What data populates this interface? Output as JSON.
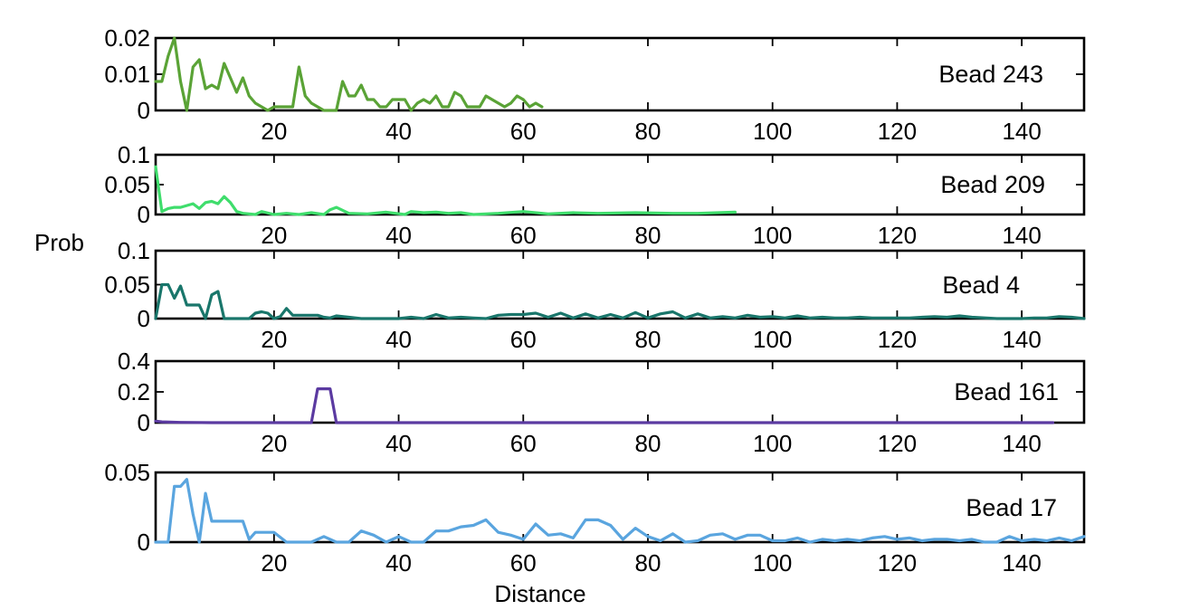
{
  "figure": {
    "ylabel": "Prob",
    "xlabel": "Distance"
  },
  "chart_data": [
    {
      "type": "line",
      "annotation": "Bead 243",
      "xlim": [
        1,
        150
      ],
      "ylim": [
        0,
        0.02
      ],
      "xticks": [
        20,
        40,
        60,
        80,
        100,
        120,
        140
      ],
      "xtick_labels": [
        "20",
        "40",
        "60",
        "80",
        "100",
        "120",
        "140"
      ],
      "yticks": [
        0,
        0.01,
        0.02
      ],
      "ytick_labels": [
        "0",
        "0.01",
        "0.02"
      ],
      "color": "#5aa336",
      "x": [
        1,
        2,
        3,
        4,
        5,
        6,
        7,
        8,
        9,
        10,
        11,
        12,
        13,
        14,
        15,
        16,
        17,
        18,
        19,
        20,
        21,
        22,
        23,
        24,
        25,
        26,
        27,
        28,
        29,
        30,
        31,
        32,
        33,
        34,
        35,
        36,
        37,
        38,
        39,
        40,
        41,
        42,
        43,
        44,
        45,
        46,
        47,
        48,
        49,
        50,
        51,
        52,
        53,
        54,
        55,
        56,
        57,
        58,
        59,
        60,
        61,
        62,
        63
      ],
      "values": [
        0.008,
        0.008,
        0.015,
        0.02,
        0.008,
        0,
        0.012,
        0.014,
        0.006,
        0.007,
        0.006,
        0.013,
        0.009,
        0.005,
        0.009,
        0.004,
        0.002,
        0.001,
        0,
        0.001,
        0.001,
        0.001,
        0.001,
        0.012,
        0.004,
        0.002,
        0.001,
        0,
        0,
        0,
        0.008,
        0.004,
        0.004,
        0.007,
        0.003,
        0.003,
        0.001,
        0.001,
        0.003,
        0.003,
        0.003,
        0,
        0.002,
        0.003,
        0.002,
        0.004,
        0.001,
        0.001,
        0.005,
        0.004,
        0.001,
        0.001,
        0.001,
        0.004,
        0.003,
        0.002,
        0.001,
        0.002,
        0.004,
        0.003,
        0.001,
        0.002,
        0.001
      ]
    },
    {
      "type": "line",
      "annotation": "Bead 209",
      "xlim": [
        1,
        150
      ],
      "ylim": [
        0,
        0.1
      ],
      "xticks": [
        20,
        40,
        60,
        80,
        100,
        120,
        140
      ],
      "xtick_labels": [
        "20",
        "40",
        "60",
        "80",
        "100",
        "120",
        "140"
      ],
      "yticks": [
        0,
        0.05,
        0.1
      ],
      "ytick_labels": [
        "0",
        "0.05",
        "0.1"
      ],
      "color": "#3fdd6c",
      "x": [
        1,
        2,
        3,
        4,
        5,
        6,
        7,
        8,
        9,
        10,
        11,
        12,
        13,
        14,
        15,
        17,
        18,
        20,
        22,
        24,
        26,
        28,
        29,
        30,
        32,
        35,
        38,
        41,
        42,
        44,
        46,
        48,
        50,
        52,
        56,
        60,
        64,
        68,
        72,
        78,
        84,
        88,
        94
      ],
      "values": [
        0.08,
        0.005,
        0.01,
        0.012,
        0.012,
        0.015,
        0.018,
        0.01,
        0.02,
        0.022,
        0.018,
        0.03,
        0.02,
        0.005,
        0.002,
        0,
        0.005,
        0,
        0.002,
        0,
        0.003,
        0,
        0.008,
        0.012,
        0.002,
        0.001,
        0.004,
        0,
        0.005,
        0.003,
        0.004,
        0.002,
        0.003,
        0,
        0.002,
        0.005,
        0.001,
        0.003,
        0.002,
        0.003,
        0.002,
        0.002,
        0.004
      ]
    },
    {
      "type": "line",
      "annotation": "Bead 4",
      "xlim": [
        1,
        150
      ],
      "ylim": [
        0,
        0.1
      ],
      "xticks": [
        20,
        40,
        60,
        80,
        100,
        120,
        140
      ],
      "xtick_labels": [
        "20",
        "40",
        "60",
        "80",
        "100",
        "120",
        "140"
      ],
      "yticks": [
        0,
        0.05,
        0.1
      ],
      "ytick_labels": [
        "0",
        "0.05",
        "0.1"
      ],
      "color": "#19766b",
      "x": [
        1,
        2,
        3,
        4,
        5,
        6,
        7,
        8,
        9,
        10,
        11,
        12,
        13,
        14,
        15,
        16,
        17,
        18,
        19,
        20,
        21,
        22,
        23,
        24,
        25,
        26,
        27,
        28,
        29,
        30,
        32,
        34,
        36,
        38,
        40,
        42,
        44,
        46,
        48,
        50,
        52,
        54,
        56,
        58,
        60,
        62,
        64,
        66,
        68,
        70,
        72,
        74,
        76,
        78,
        80,
        82,
        84,
        86,
        88,
        90,
        92,
        94,
        96,
        98,
        100,
        102,
        104,
        106,
        108,
        110,
        112,
        114,
        116,
        118,
        120,
        122,
        124,
        126,
        128,
        130,
        132,
        136,
        140,
        142,
        144,
        146,
        148,
        150
      ],
      "values": [
        0,
        0.05,
        0.05,
        0.03,
        0.048,
        0.02,
        0.02,
        0.02,
        0,
        0.035,
        0.04,
        0,
        0,
        0,
        0,
        0,
        0.008,
        0.01,
        0.008,
        0,
        0.003,
        0.015,
        0.005,
        0.005,
        0.005,
        0.005,
        0.005,
        0.002,
        0.001,
        0.004,
        0.002,
        0,
        0,
        0,
        0,
        0.002,
        0,
        0.006,
        0.001,
        0.002,
        0.001,
        0,
        0.005,
        0.006,
        0.006,
        0.008,
        0.002,
        0.008,
        0.001,
        0.007,
        0.001,
        0.006,
        0.001,
        0.009,
        0.001,
        0.007,
        0.01,
        0.001,
        0.007,
        0.001,
        0.003,
        0.001,
        0.005,
        0.002,
        0.003,
        0.001,
        0.004,
        0.001,
        0.002,
        0.001,
        0.001,
        0.002,
        0.001,
        0.001,
        0.001,
        0.001,
        0.002,
        0.003,
        0.002,
        0.004,
        0.002,
        0,
        0,
        0.001,
        0.001,
        0.003,
        0.002,
        0
      ]
    },
    {
      "type": "line",
      "annotation": "Bead 161",
      "xlim": [
        1,
        150
      ],
      "ylim": [
        0,
        0.4
      ],
      "xticks": [
        20,
        40,
        60,
        80,
        100,
        120,
        140
      ],
      "xtick_labels": [
        "20",
        "40",
        "60",
        "80",
        "100",
        "120",
        "140"
      ],
      "yticks": [
        0,
        0.2,
        0.4
      ],
      "ytick_labels": [
        "0",
        "0.2",
        "0.4"
      ],
      "color": "#5b3aa1",
      "x": [
        1,
        2,
        5,
        10,
        20,
        26,
        27,
        28,
        29,
        30,
        31,
        40,
        60,
        80,
        100,
        120,
        140,
        145
      ],
      "values": [
        0.01,
        0.005,
        0.002,
        0,
        0,
        0,
        0.22,
        0.22,
        0.22,
        0,
        0,
        0,
        0,
        0,
        0,
        0,
        0,
        0
      ]
    },
    {
      "type": "line",
      "annotation": "Bead 17",
      "xlim": [
        1,
        150
      ],
      "ylim": [
        0,
        0.05
      ],
      "xticks": [
        20,
        40,
        60,
        80,
        100,
        120,
        140
      ],
      "xtick_labels": [
        "20",
        "40",
        "60",
        "80",
        "100",
        "120",
        "140"
      ],
      "yticks": [
        0,
        0.05
      ],
      "ytick_labels": [
        "0",
        "0.05"
      ],
      "color": "#5aa5df",
      "x": [
        1,
        2,
        3,
        4,
        5,
        6,
        7,
        8,
        9,
        10,
        11,
        12,
        13,
        14,
        15,
        16,
        17,
        18,
        19,
        20,
        22,
        24,
        26,
        28,
        30,
        32,
        34,
        36,
        38,
        40,
        42,
        44,
        46,
        48,
        50,
        52,
        54,
        56,
        58,
        60,
        62,
        64,
        66,
        68,
        70,
        72,
        74,
        76,
        78,
        80,
        82,
        84,
        86,
        88,
        90,
        92,
        94,
        96,
        98,
        100,
        102,
        104,
        106,
        108,
        110,
        112,
        114,
        116,
        118,
        120,
        122,
        124,
        126,
        128,
        130,
        132,
        134,
        136,
        138,
        140,
        142,
        144,
        146,
        148,
        150
      ],
      "values": [
        0,
        0,
        0,
        0.04,
        0.04,
        0.045,
        0.02,
        0,
        0.035,
        0.015,
        0.015,
        0.015,
        0.015,
        0.015,
        0.015,
        0.002,
        0.007,
        0.007,
        0.007,
        0.007,
        0,
        0,
        0,
        0.004,
        0,
        0,
        0.008,
        0.005,
        0,
        0.004,
        0,
        0,
        0.008,
        0.008,
        0.011,
        0.012,
        0.016,
        0.007,
        0.005,
        0.002,
        0.013,
        0.005,
        0.006,
        0.003,
        0.016,
        0.016,
        0.012,
        0.002,
        0.01,
        0.004,
        0.001,
        0.006,
        0,
        0.001,
        0.005,
        0.006,
        0.002,
        0.005,
        0.005,
        0.001,
        0.001,
        0.003,
        0,
        0.002,
        0.001,
        0.002,
        0.001,
        0.003,
        0.004,
        0.002,
        0.003,
        0.001,
        0.002,
        0.002,
        0.001,
        0.002,
        0,
        0,
        0.004,
        0.001,
        0.002,
        0.001,
        0.003,
        0.001,
        0.004
      ]
    }
  ]
}
